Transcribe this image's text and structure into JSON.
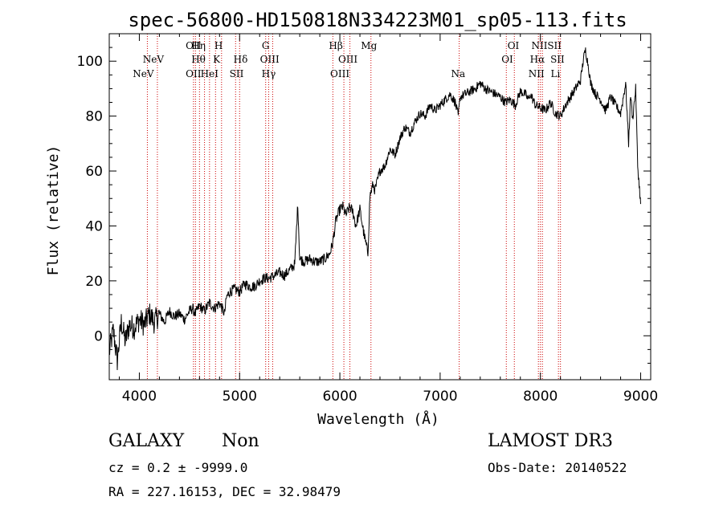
{
  "chart_data": {
    "type": "line",
    "title": "spec-56800-HD150818N334223M01_sp05-113.fits",
    "xlabel": "Wavelength (Å)",
    "ylabel": "Flux (relative)",
    "xlim": [
      3700,
      9100
    ],
    "ylim": [
      -16,
      110
    ],
    "xticks": [
      4000,
      5000,
      6000,
      7000,
      8000,
      9000
    ],
    "xtick_labels": [
      "4000",
      "5000",
      "6000",
      "7000",
      "8000",
      "9000"
    ],
    "yticks": [
      0,
      20,
      40,
      60,
      80,
      100
    ],
    "ytick_labels": [
      "0",
      "20",
      "40",
      "60",
      "80",
      "100"
    ],
    "grid": false,
    "series": [
      {
        "name": "flux",
        "x": [
          3700,
          3740,
          3780,
          3820,
          3860,
          3900,
          3950,
          4000,
          4050,
          4100,
          4150,
          4200,
          4250,
          4300,
          4350,
          4400,
          4450,
          4500,
          4530,
          4560,
          4600,
          4650,
          4700,
          4750,
          4800,
          4850,
          4870,
          4900,
          4950,
          5000,
          5050,
          5100,
          5150,
          5200,
          5250,
          5300,
          5350,
          5400,
          5450,
          5500,
          5550,
          5580,
          5600,
          5650,
          5700,
          5750,
          5800,
          5850,
          5900,
          5930,
          5960,
          6000,
          6030,
          6060,
          6100,
          6130,
          6160,
          6200,
          6240,
          6280,
          6300,
          6330,
          6350,
          6400,
          6450,
          6500,
          6550,
          6600,
          6650,
          6700,
          6750,
          6800,
          6850,
          6900,
          6950,
          7000,
          7050,
          7100,
          7150,
          7180,
          7200,
          7250,
          7300,
          7350,
          7400,
          7450,
          7500,
          7550,
          7600,
          7650,
          7700,
          7750,
          7800,
          7850,
          7880,
          7900,
          7950,
          8000,
          8050,
          8100,
          8150,
          8200,
          8250,
          8300,
          8350,
          8400,
          8430,
          8450,
          8480,
          8500,
          8550,
          8600,
          8650,
          8700,
          8750,
          8800,
          8850,
          8880,
          8900,
          8920,
          8950,
          8970,
          9000
        ],
        "y": [
          -6,
          2,
          -9,
          5,
          -2,
          4,
          3,
          6,
          4,
          8,
          5,
          8,
          5,
          9,
          7,
          8,
          6,
          9,
          10,
          8,
          11,
          9,
          12,
          10,
          12,
          8,
          14,
          16,
          17,
          16,
          19,
          18,
          18,
          20,
          21,
          21,
          22,
          23,
          22,
          24,
          26,
          48,
          28,
          27,
          28,
          27,
          27,
          28,
          30,
          34,
          42,
          46,
          47,
          44,
          47,
          45,
          40,
          46,
          37,
          30,
          51,
          55,
          53,
          60,
          62,
          68,
          66,
          72,
          76,
          74,
          78,
          81,
          80,
          84,
          82,
          84,
          86,
          88,
          85,
          80,
          87,
          88,
          89,
          90,
          92,
          90,
          89,
          88,
          87,
          85,
          86,
          84,
          89,
          88,
          86,
          88,
          84,
          83,
          82,
          85,
          81,
          80,
          84,
          87,
          90,
          93,
          101,
          104,
          98,
          92,
          88,
          86,
          82,
          87,
          84,
          81,
          92,
          70,
          88,
          79,
          90,
          62,
          48
        ],
        "color": "#000000"
      }
    ],
    "emission_lines": [
      {
        "label": "NeV",
        "x": 4040,
        "row": 2
      },
      {
        "label": "NeV",
        "x": 4140,
        "row": 1
      },
      {
        "label": "OII",
        "x": 4540,
        "row": 0
      },
      {
        "label": "OII",
        "x": 4540,
        "row": 2
      },
      {
        "label": "Hη",
        "x": 4590,
        "row": 0
      },
      {
        "label": "Hθ",
        "x": 4590,
        "row": 1
      },
      {
        "label": "HeI",
        "x": 4700,
        "row": 2
      },
      {
        "label": "H",
        "x": 4790,
        "row": 0
      },
      {
        "label": "K",
        "x": 4770,
        "row": 1
      },
      {
        "label": "Hδ",
        "x": 5010,
        "row": 1
      },
      {
        "label": "SII",
        "x": 4970,
        "row": 2
      },
      {
        "label": "G",
        "x": 5260,
        "row": 0
      },
      {
        "label": "OIII",
        "x": 5300,
        "row": 1
      },
      {
        "label": "Hγ",
        "x": 5290,
        "row": 2
      },
      {
        "label": "Hβ",
        "x": 5960,
        "row": 0
      },
      {
        "label": "OIII",
        "x": 6080,
        "row": 1
      },
      {
        "label": "OIII",
        "x": 6000,
        "row": 2
      },
      {
        "label": "Mg",
        "x": 6290,
        "row": 0
      },
      {
        "label": "Na",
        "x": 7180,
        "row": 2
      },
      {
        "label": "OI",
        "x": 7730,
        "row": 0
      },
      {
        "label": "OI",
        "x": 7670,
        "row": 1
      },
      {
        "label": "NII",
        "x": 7990,
        "row": 0
      },
      {
        "label": "Hα",
        "x": 7970,
        "row": 1
      },
      {
        "label": "NII",
        "x": 7960,
        "row": 2
      },
      {
        "label": "SII",
        "x": 8140,
        "row": 0
      },
      {
        "label": "SII",
        "x": 8170,
        "row": 1
      },
      {
        "label": "Li",
        "x": 8150,
        "row": 2
      }
    ],
    "line_markers_x": [
      4080,
      4180,
      4540,
      4560,
      4600,
      4650,
      4700,
      4760,
      4820,
      4960,
      5000,
      5260,
      5290,
      5330,
      5930,
      6040,
      6100,
      6310,
      7190,
      7660,
      7740,
      7980,
      8000,
      8020,
      8180,
      8200
    ]
  },
  "info": {
    "object_class": "GALAXY",
    "subclass": "Non",
    "survey": "LAMOST DR3",
    "cz_text": "cz = 0.2 ± -9999.0",
    "obs_date": "Obs-Date: 20140522",
    "coords": "RA = 227.16153, DEC =  32.98479"
  },
  "colors": {
    "spectrum": "#000000",
    "marker_line": "#cc0000",
    "axes": "#000000",
    "background": "#ffffff"
  }
}
